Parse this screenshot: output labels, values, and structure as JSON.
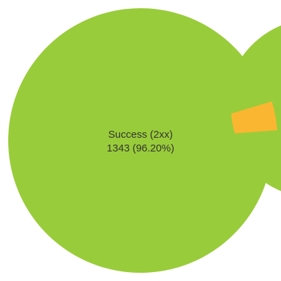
{
  "chart_data": {
    "type": "pie",
    "style": "donut",
    "slices": [
      {
        "label": "Success (2xx)",
        "value": 1343,
        "percent": 96.2,
        "color": "#99CC3A"
      },
      {
        "label": "",
        "value": 53,
        "percent": 3.8,
        "color": "#FBB631"
      }
    ],
    "center_label": {
      "name": "Success (2xx)",
      "value_text": "1343 (96.20%)"
    },
    "legend": "none"
  }
}
